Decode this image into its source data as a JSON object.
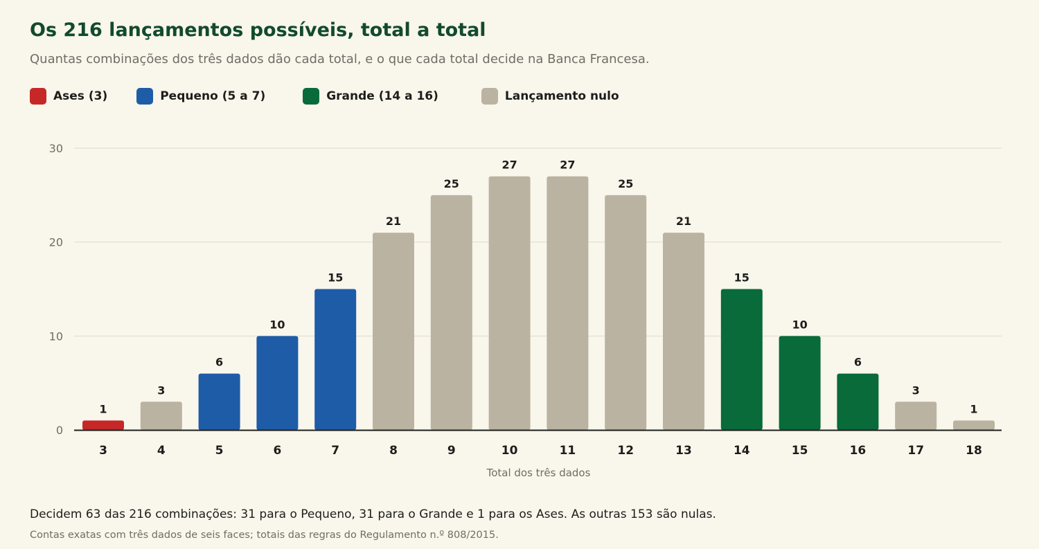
{
  "title": "Os 216 lançamentos possíveis, total a total",
  "subtitle": "Quantas combinações dos três dados dão cada total, e o que cada total decide na Banca Francesa.",
  "legend": [
    {
      "label": "Ases (3)",
      "color": "#c62828"
    },
    {
      "label": "Pequeno (5 a 7)",
      "color": "#1e5ca8"
    },
    {
      "label": "Grande (14 a 16)",
      "color": "#086b39"
    },
    {
      "label": "Lançamento nulo",
      "color": "#bab3a1"
    }
  ],
  "chart_data": {
    "type": "bar",
    "categories": [
      "3",
      "4",
      "5",
      "6",
      "7",
      "8",
      "9",
      "10",
      "11",
      "12",
      "13",
      "14",
      "15",
      "16",
      "17",
      "18"
    ],
    "values": [
      1,
      3,
      6,
      10,
      15,
      21,
      25,
      27,
      27,
      25,
      21,
      15,
      10,
      6,
      3,
      1
    ],
    "groups": [
      "ases",
      "nulo",
      "pequeno",
      "pequeno",
      "pequeno",
      "nulo",
      "nulo",
      "nulo",
      "nulo",
      "nulo",
      "nulo",
      "grande",
      "grande",
      "grande",
      "nulo",
      "nulo"
    ],
    "group_colors": {
      "ases": "#c62828",
      "pequeno": "#1e5ca8",
      "grande": "#086b39",
      "nulo": "#bab3a1"
    },
    "xlabel": "Total dos três dados",
    "ylabel": "",
    "ylim": [
      0,
      30
    ],
    "yticks": [
      0,
      10,
      20,
      30
    ],
    "grid": true,
    "data_labels": true
  },
  "footer": {
    "note": "Decidem 63 das 216 combinações: 31 para o Pequeno, 31 para o Grande e 1 para os Ases. As outras 153 são nulas.",
    "source": "Contas exatas com três dados de seis faces; totais das regras do Regulamento n.º 808/2015."
  }
}
